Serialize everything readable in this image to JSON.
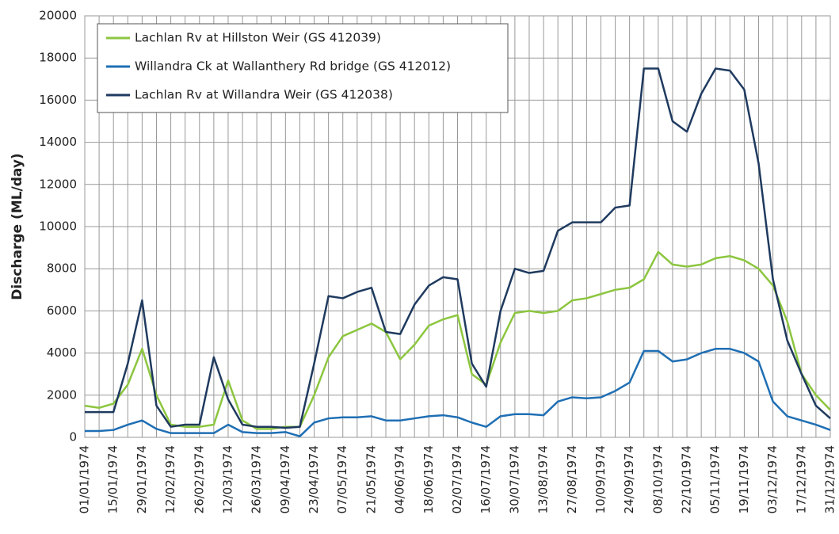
{
  "chart_data": {
    "type": "line",
    "y_label": "Discharge (ML/day)",
    "categories": [
      "01/01/1974",
      null,
      "15/01/1974",
      null,
      "29/01/1974",
      null,
      "12/02/1974",
      null,
      "26/02/1974",
      null,
      "12/03/1974",
      null,
      "26/03/1974",
      null,
      "09/04/1974",
      null,
      "23/04/1974",
      null,
      "07/05/1974",
      null,
      "21/05/1974",
      null,
      "04/06/1974",
      null,
      "18/06/1974",
      null,
      "02/07/1974",
      null,
      "16/07/1974",
      null,
      "30/07/1974",
      null,
      "13/08/1974",
      null,
      "27/08/1974",
      null,
      "10/09/1974",
      null,
      "24/09/1974",
      null,
      "08/10/1974",
      null,
      "22/10/1974",
      null,
      "05/11/1974",
      null,
      "19/11/1974",
      null,
      "03/12/1974",
      null,
      "17/12/1974",
      null,
      "31/12/1974"
    ],
    "series": [
      {
        "name": "Lachlan Rv at Hillston Weir (GS 412039)",
        "color": "#8cc63f",
        "values": [
          1500,
          1400,
          1600,
          2500,
          4200,
          2000,
          600,
          500,
          500,
          600,
          2700,
          800,
          400,
          400,
          500,
          500,
          2000,
          3800,
          4800,
          5100,
          5400,
          5000,
          3700,
          4400,
          5300,
          5600,
          5800,
          3000,
          2500,
          4500,
          5900,
          6000,
          5900,
          6000,
          6500,
          6600,
          6800,
          7000,
          7100,
          7500,
          8800,
          8200,
          8100,
          8200,
          8500,
          8600,
          8400,
          8000,
          7200,
          5500,
          3000,
          2000,
          1300
        ]
      },
      {
        "name": "Willandra Ck at Wallanthery Rd bridge (GS 412012)",
        "color": "#1f6fb4",
        "values": [
          300,
          300,
          350,
          600,
          800,
          400,
          200,
          200,
          200,
          200,
          600,
          250,
          200,
          200,
          250,
          50,
          700,
          900,
          950,
          950,
          1000,
          800,
          800,
          900,
          1000,
          1050,
          950,
          700,
          500,
          1000,
          1100,
          1100,
          1050,
          1700,
          1900,
          1850,
          1900,
          2200,
          2600,
          4100,
          4100,
          3600,
          3700,
          4000,
          4200,
          4200,
          4000,
          3600,
          1700,
          1000,
          800,
          600,
          350
        ]
      },
      {
        "name": "Lachlan Rv at Willandra Weir (GS 412038)",
        "color": "#1f3a5f",
        "values": [
          1200,
          1200,
          1200,
          3500,
          6500,
          1500,
          500,
          600,
          600,
          3800,
          1800,
          600,
          500,
          500,
          450,
          500,
          3500,
          6700,
          6600,
          6900,
          7100,
          5000,
          4900,
          6300,
          7200,
          7600,
          7500,
          3500,
          2400,
          6000,
          8000,
          7800,
          7900,
          9800,
          10200,
          10200,
          10200,
          10900,
          11000,
          17500,
          17500,
          15000,
          14500,
          16300,
          17500,
          17400,
          16500,
          13000,
          7500,
          4600,
          3000,
          1500,
          900
        ]
      }
    ],
    "ylim": [
      0,
      20000
    ],
    "yticks": [
      0,
      2000,
      4000,
      6000,
      8000,
      10000,
      12000,
      14000,
      16000,
      18000,
      20000
    ],
    "grid": true
  }
}
